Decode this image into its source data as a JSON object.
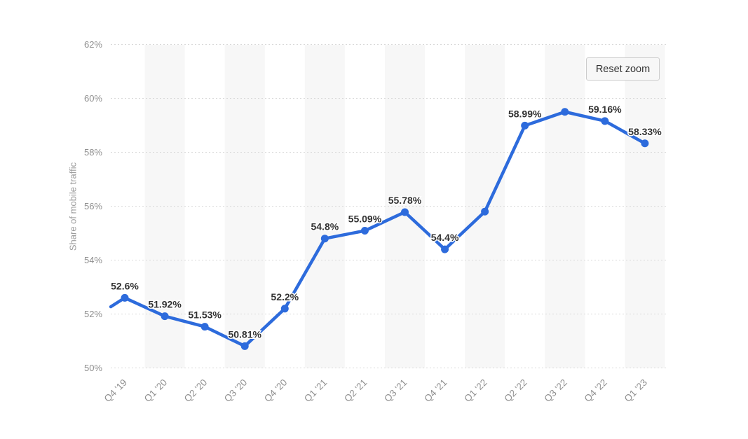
{
  "chart": {
    "reset_zoom_label": "Reset zoom"
  },
  "chart_data": {
    "type": "line",
    "title": "",
    "xlabel": "",
    "ylabel": "Share of mobile traffic",
    "categories": [
      "Q4 '19",
      "Q1 '20",
      "Q2 '20",
      "Q3 '20",
      "Q4 '20",
      "Q1 '21",
      "Q2 '21",
      "Q3 '21",
      "Q4 '21",
      "Q1 '22",
      "Q2 '22",
      "Q3 '22",
      "Q4 '22",
      "Q1 '23"
    ],
    "series": [
      {
        "name": "Share of mobile traffic",
        "values": [
          52.6,
          51.92,
          51.53,
          50.81,
          52.2,
          54.8,
          55.09,
          55.78,
          54.4,
          55.8,
          58.99,
          59.5,
          59.16,
          58.33
        ],
        "point_labels": [
          "52.6%",
          "51.92%",
          "51.53%",
          "50.81%",
          "52.2%",
          "54.8%",
          "55.09%",
          "55.78%",
          "54.4%",
          null,
          "58.99%",
          null,
          "59.16%",
          "58.33%"
        ]
      }
    ],
    "ylim": [
      50,
      62
    ],
    "ytick_values": [
      50,
      52,
      54,
      56,
      58,
      60,
      62
    ],
    "yticks": [
      "50%",
      "52%",
      "54%",
      "56%",
      "58%",
      "60%",
      "62%"
    ],
    "left_edge_entry_value": 52.27,
    "grid": "horizontal-dotted",
    "legend": "none",
    "band_categories": [
      "Q1 '20",
      "Q3 '20",
      "Q1 '21",
      "Q3 '21",
      "Q1 '22",
      "Q3 '22",
      "Q1 '23"
    ],
    "line_color": "#2d6bdc",
    "band_color": "#f7f7f7",
    "grid_color": "#d9d9d9",
    "axis_label_color": "#8f8f8f",
    "data_label_color": "#333333"
  }
}
